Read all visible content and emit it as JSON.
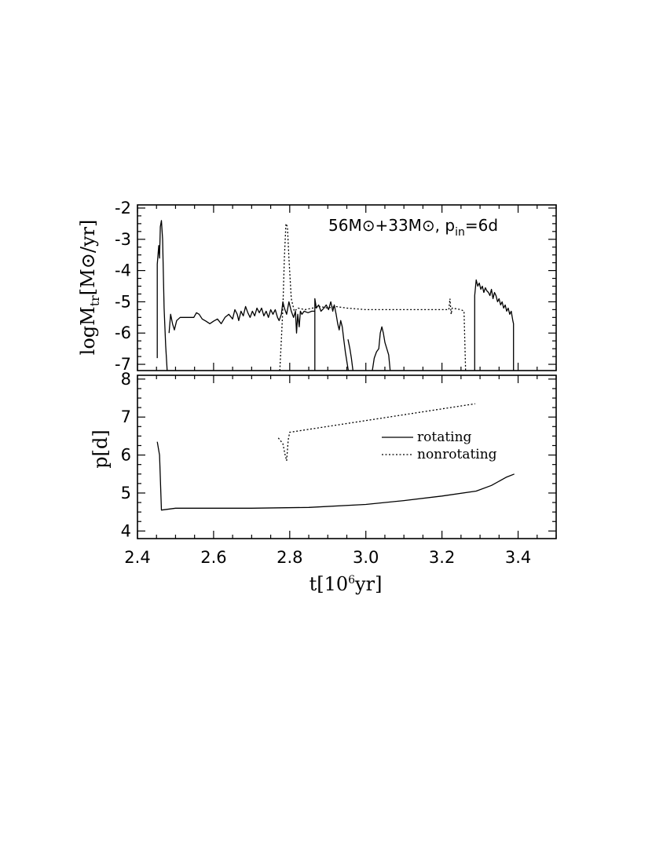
{
  "chart_data": [
    {
      "type": "line",
      "panel": "top",
      "annotation": {
        "main": "56M⊙+33M⊙, p",
        "sub": "in",
        "tail": "=6d"
      },
      "ylabel": {
        "main": "logM",
        "sub": "tr",
        "tail": "[M⊙/yr]"
      },
      "xlim": [
        2.4,
        3.5
      ],
      "ylim": [
        -7.2,
        -1.9
      ],
      "yticks": [
        -7,
        -6,
        -5,
        -4,
        -3,
        -2
      ],
      "ytick_labels": [
        "-7",
        "-6",
        "-5",
        "-4",
        "-3",
        "-2"
      ],
      "series": [
        {
          "style": "solid",
          "segments": [
            [
              [
                2.452,
                -6.8
              ],
              [
                2.452,
                -3.8
              ],
              [
                2.456,
                -3.2
              ],
              [
                2.458,
                -3.6
              ],
              [
                2.46,
                -2.6
              ],
              [
                2.463,
                -2.4
              ],
              [
                2.466,
                -3.0
              ],
              [
                2.47,
                -5.2
              ],
              [
                2.474,
                -6.4
              ],
              [
                2.478,
                -7.2
              ]
            ],
            [
              [
                2.483,
                -6.0
              ],
              [
                2.487,
                -5.4
              ],
              [
                2.492,
                -5.7
              ],
              [
                2.497,
                -5.9
              ],
              [
                2.503,
                -5.6
              ],
              [
                2.512,
                -5.5
              ],
              [
                2.53,
                -5.5
              ],
              [
                2.548,
                -5.5
              ],
              [
                2.555,
                -5.35
              ],
              [
                2.562,
                -5.4
              ],
              [
                2.57,
                -5.55
              ],
              [
                2.58,
                -5.62
              ],
              [
                2.59,
                -5.7
              ],
              [
                2.6,
                -5.62
              ],
              [
                2.61,
                -5.55
              ],
              [
                2.62,
                -5.7
              ],
              [
                2.63,
                -5.5
              ],
              [
                2.64,
                -5.4
              ],
              [
                2.65,
                -5.55
              ],
              [
                2.656,
                -5.25
              ],
              [
                2.662,
                -5.4
              ],
              [
                2.666,
                -5.6
              ],
              [
                2.672,
                -5.3
              ],
              [
                2.678,
                -5.45
              ],
              [
                2.684,
                -5.15
              ],
              [
                2.69,
                -5.35
              ],
              [
                2.696,
                -5.5
              ],
              [
                2.702,
                -5.3
              ],
              [
                2.708,
                -5.45
              ],
              [
                2.714,
                -5.2
              ],
              [
                2.72,
                -5.35
              ],
              [
                2.726,
                -5.2
              ],
              [
                2.732,
                -5.45
              ],
              [
                2.738,
                -5.3
              ],
              [
                2.744,
                -5.5
              ],
              [
                2.75,
                -5.25
              ],
              [
                2.756,
                -5.4
              ],
              [
                2.762,
                -5.25
              ],
              [
                2.768,
                -5.5
              ],
              [
                2.772,
                -5.6
              ],
              [
                2.778,
                -5.4
              ],
              [
                2.782,
                -5.0
              ],
              [
                2.786,
                -5.2
              ],
              [
                2.792,
                -5.4
              ],
              [
                2.798,
                -5.0
              ],
              [
                2.804,
                -5.3
              ],
              [
                2.81,
                -5.5
              ],
              [
                2.815,
                -5.3
              ],
              [
                2.818,
                -6.0
              ],
              [
                2.821,
                -5.4
              ],
              [
                2.825,
                -5.8
              ],
              [
                2.828,
                -5.3
              ],
              [
                2.832,
                -5.4
              ],
              [
                2.838,
                -5.3
              ],
              [
                2.848,
                -5.35
              ],
              [
                2.858,
                -5.3
              ],
              [
                2.866,
                -5.3
              ]
            ],
            [
              [
                2.866,
                -7.2
              ],
              [
                2.866,
                -4.9
              ],
              [
                2.87,
                -5.2
              ],
              [
                2.876,
                -5.1
              ],
              [
                2.882,
                -5.3
              ],
              [
                2.89,
                -5.2
              ],
              [
                2.896,
                -5.1
              ],
              [
                2.902,
                -5.25
              ],
              [
                2.908,
                -5.0
              ],
              [
                2.913,
                -5.3
              ],
              [
                2.917,
                -5.1
              ],
              [
                2.922,
                -5.4
              ],
              [
                2.926,
                -5.7
              ],
              [
                2.93,
                -5.9
              ],
              [
                2.934,
                -5.6
              ],
              [
                2.938,
                -5.8
              ],
              [
                2.942,
                -6.2
              ],
              [
                2.946,
                -6.6
              ],
              [
                2.95,
                -6.9
              ],
              [
                2.954,
                -7.2
              ]
            ],
            [
              [
                2.953,
                -6.2
              ],
              [
                2.958,
                -6.5
              ],
              [
                2.962,
                -6.8
              ],
              [
                2.966,
                -7.2
              ]
            ],
            [
              [
                3.017,
                -7.2
              ],
              [
                3.022,
                -6.8
              ],
              [
                3.028,
                -6.6
              ],
              [
                3.034,
                -6.5
              ],
              [
                3.038,
                -6.0
              ],
              [
                3.042,
                -5.8
              ],
              [
                3.046,
                -6.0
              ],
              [
                3.05,
                -6.3
              ],
              [
                3.055,
                -6.5
              ],
              [
                3.06,
                -6.7
              ],
              [
                3.064,
                -7.2
              ]
            ],
            [
              [
                3.286,
                -7.2
              ],
              [
                3.286,
                -4.8
              ],
              [
                3.29,
                -4.3
              ],
              [
                3.294,
                -4.5
              ],
              [
                3.298,
                -4.4
              ],
              [
                3.302,
                -4.6
              ],
              [
                3.306,
                -4.5
              ],
              [
                3.31,
                -4.7
              ],
              [
                3.314,
                -4.55
              ],
              [
                3.318,
                -4.65
              ],
              [
                3.322,
                -4.7
              ],
              [
                3.326,
                -4.8
              ],
              [
                3.33,
                -4.6
              ],
              [
                3.334,
                -4.9
              ],
              [
                3.338,
                -4.7
              ],
              [
                3.342,
                -4.8
              ],
              [
                3.346,
                -5.0
              ],
              [
                3.35,
                -4.9
              ],
              [
                3.354,
                -5.1
              ],
              [
                3.358,
                -5.0
              ],
              [
                3.362,
                -5.2
              ],
              [
                3.366,
                -5.1
              ],
              [
                3.37,
                -5.3
              ],
              [
                3.374,
                -5.2
              ],
              [
                3.378,
                -5.4
              ],
              [
                3.382,
                -5.3
              ],
              [
                3.386,
                -5.6
              ],
              [
                3.388,
                -5.7
              ],
              [
                3.388,
                -7.2
              ]
            ]
          ]
        },
        {
          "style": "dotted",
          "segments": [
            [
              [
                2.774,
                -7.2
              ],
              [
                2.778,
                -6.2
              ],
              [
                2.782,
                -5.2
              ],
              [
                2.786,
                -3.6
              ],
              [
                2.79,
                -2.5
              ],
              [
                2.794,
                -2.6
              ],
              [
                2.798,
                -3.6
              ],
              [
                2.804,
                -4.9
              ],
              [
                2.812,
                -5.3
              ],
              [
                2.822,
                -5.2
              ],
              [
                2.84,
                -5.25
              ],
              [
                2.86,
                -5.2
              ],
              [
                2.88,
                -5.15
              ],
              [
                2.9,
                -5.2
              ],
              [
                2.92,
                -5.15
              ],
              [
                2.95,
                -5.2
              ],
              [
                3.0,
                -5.25
              ],
              [
                3.05,
                -5.25
              ],
              [
                3.1,
                -5.25
              ],
              [
                3.15,
                -5.25
              ],
              [
                3.2,
                -5.25
              ],
              [
                3.218,
                -5.25
              ],
              [
                3.221,
                -4.9
              ],
              [
                3.224,
                -5.4
              ],
              [
                3.227,
                -5.2
              ],
              [
                3.25,
                -5.25
              ],
              [
                3.258,
                -5.3
              ],
              [
                3.262,
                -7.2
              ]
            ]
          ]
        }
      ]
    },
    {
      "type": "line",
      "panel": "bottom",
      "xlabel": {
        "main": "t[10",
        "sup": "6",
        "tail": "yr]"
      },
      "ylabel": "p[d]",
      "xlim": [
        2.4,
        3.5
      ],
      "ylim": [
        3.8,
        8.1
      ],
      "xticks": [
        2.4,
        2.6,
        2.8,
        3.0,
        3.2,
        3.4
      ],
      "xtick_labels": [
        "2.4",
        "2.6",
        "2.8",
        "3.0",
        "3.2",
        "3.4"
      ],
      "yticks": [
        4,
        5,
        6,
        7,
        8
      ],
      "ytick_labels": [
        "4",
        "5",
        "6",
        "7",
        "8"
      ],
      "legend": {
        "position": "right-middle",
        "entries": [
          {
            "label": "rotating",
            "style": "solid"
          },
          {
            "label": "nonrotating",
            "style": "dotted"
          }
        ]
      },
      "series": [
        {
          "name": "rotating",
          "style": "solid",
          "points": [
            [
              2.452,
              6.35
            ],
            [
              2.458,
              6.0
            ],
            [
              2.463,
              4.55
            ],
            [
              2.5,
              4.6
            ],
            [
              2.7,
              4.6
            ],
            [
              2.85,
              4.62
            ],
            [
              3.0,
              4.7
            ],
            [
              3.1,
              4.8
            ],
            [
              3.2,
              4.92
            ],
            [
              3.29,
              5.05
            ],
            [
              3.33,
              5.2
            ],
            [
              3.37,
              5.42
            ],
            [
              3.39,
              5.5
            ]
          ]
        },
        {
          "name": "nonrotating",
          "style": "dotted",
          "points": [
            [
              2.77,
              6.45
            ],
            [
              2.782,
              6.3
            ],
            [
              2.788,
              6.0
            ],
            [
              2.792,
              5.85
            ],
            [
              2.796,
              6.4
            ],
            [
              2.8,
              6.6
            ],
            [
              3.287,
              7.35
            ]
          ]
        }
      ]
    }
  ]
}
